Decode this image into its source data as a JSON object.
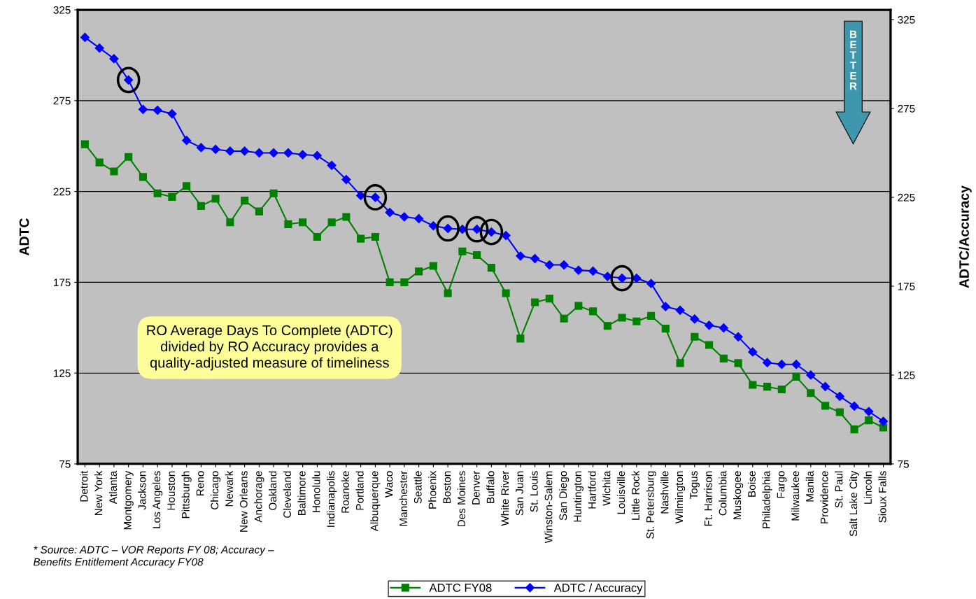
{
  "chart_data": {
    "type": "line",
    "categories": [
      "Detroit",
      "New York",
      "Atlanta",
      "Montgomery",
      "Jackson",
      "Los Angeles",
      "Houston",
      "Pittsburgh",
      "Reno",
      "Chicago",
      "Newark",
      "New Orleans",
      "Anchorage",
      "Oakland",
      "Cleveland",
      "Baltimore",
      "Honolulu",
      "Indianapolis",
      "Roanoke",
      "Portland",
      "Albuquerque",
      "Waco",
      "Manchester",
      "Seattle",
      "Phoenix",
      "Boston",
      "Des Moines",
      "Denver",
      "Buffalo",
      "White River",
      "San Juan",
      "St. Louis",
      "Winston-Salem",
      "San Diego",
      "Huntington",
      "Hartford",
      "Wichita",
      "Louisville",
      "Little Rock",
      "St. Petersburg",
      "Nashville",
      "Wilmington",
      "Togus",
      "Ft. Harrison",
      "Columbia",
      "Muskogee",
      "Boise",
      "Philadelphia",
      "Fargo",
      "Milwaukee",
      "Manila",
      "Providence",
      "St. Paul",
      "Salt Lake City",
      "Lincoln",
      "Sioux Falls"
    ],
    "series": [
      {
        "name": "ADTC FY08",
        "color": "#008000",
        "marker": "square",
        "values": [
          251,
          241,
          236,
          244,
          233,
          224,
          222,
          228,
          217,
          221,
          208,
          220,
          214,
          224,
          207,
          208,
          200,
          208,
          211,
          199,
          200,
          175,
          175,
          181,
          184,
          169,
          192,
          190,
          183,
          169,
          144,
          164,
          166,
          155,
          162,
          159,
          151,
          155.5,
          153.5,
          156.5,
          149.5,
          130.5,
          145,
          140.5,
          133,
          130.5,
          118.5,
          117.5,
          116,
          123,
          114,
          107,
          103.5,
          94,
          99,
          95
        ]
      },
      {
        "name": "ADTC / Accuracy",
        "color": "#0000ff",
        "marker": "diamond",
        "axis": "y2",
        "values": [
          315,
          309,
          303,
          291,
          274.5,
          274,
          272,
          257,
          253,
          252,
          251,
          251,
          250,
          250,
          250,
          249,
          248.5,
          243,
          235,
          226,
          225,
          216.5,
          214,
          213,
          209,
          207.5,
          207,
          207,
          205.5,
          203.5,
          192,
          190.5,
          187,
          187,
          184,
          183.5,
          180.5,
          179.5,
          179.5,
          176.5,
          163.5,
          161.5,
          156.5,
          153,
          151.5,
          146.5,
          138,
          132,
          131,
          131,
          125,
          118.5,
          113,
          107.5,
          104.5,
          99
        ]
      }
    ],
    "ylabel": "ADTC",
    "y2label": "ADTC/Accuracy",
    "ylim": [
      75,
      325
    ],
    "yticks": [
      75,
      125,
      175,
      225,
      275,
      325
    ],
    "y2lim": [
      75,
      330.5
    ],
    "y2ticks": [
      75,
      125,
      175,
      225,
      275,
      325
    ],
    "grid": "y",
    "legend": "bottom",
    "line_style": "solid",
    "annotations": [
      "RO Average Days To Complete (ADTC)\ndivided by RO Accuracy provides a\nquality-adjusted measure of timeliness",
      "BETTER",
      "* Source: ADTC – VOR Reports FY 08; Accuracy –\nBenefits Entitlement Accuracy FY08"
    ]
  }
}
